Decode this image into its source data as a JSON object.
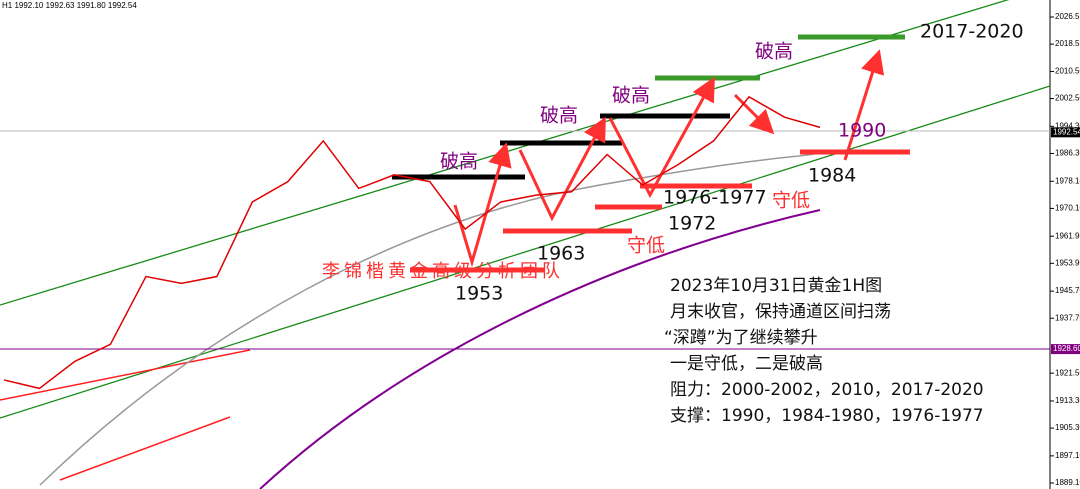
{
  "chart_data": {
    "type": "line",
    "header": "H1  1992.10 1992.63 1991.80 1992.54",
    "categories": [
      null,
      null,
      null,
      null,
      null,
      null,
      null,
      null,
      null,
      null,
      null,
      null,
      null,
      null,
      null,
      null,
      null,
      null,
      null,
      null,
      null,
      null,
      null,
      null
    ],
    "series": [
      {
        "color": "#e00000",
        "values": [
          1919.5,
          1917,
          1925,
          1930,
          1950,
          1948,
          1950,
          1972,
          1978,
          1990,
          1976,
          1980,
          1978,
          1964,
          1972,
          1974,
          1975,
          1986,
          1977,
          1983,
          1990,
          2003,
          1997,
          1994
        ]
      }
    ],
    "ylim": [
      1887.33,
      2031.57
    ],
    "yticks": [
      2026.56,
      {
        "value": 2018.55,
        "label": "2018.55"
      },
      {
        "value": 2010.5,
        "label": "2010.50"
      },
      {
        "value": 2002.5,
        "label": "2002.50"
      },
      {
        "value": 1994.3,
        "label": "1994.30"
      },
      {
        "value": 1986.3,
        "label": "1986.30"
      },
      {
        "value": 1978.1,
        "label": "1978.10"
      },
      {
        "value": 1970.1,
        "label": "1970.10"
      },
      {
        "value": 1961.9,
        "label": "1961.90"
      },
      {
        "value": 1953.9,
        "label": "1953.90"
      },
      {
        "value": 1945.7,
        "label": "1945.70"
      },
      {
        "value": 1937.7,
        "label": "1937.70"
      },
      {
        "value": 1921.5,
        "label": "1921.50"
      },
      {
        "value": 1913.3,
        "label": "1913.30"
      },
      {
        "value": 1905.3,
        "label": "1905.30"
      },
      {
        "value": 1897.1,
        "label": "1897.10"
      },
      {
        "value": 1889.1,
        "label": "1889.10"
      }
    ],
    "price_labels": [
      {
        "value": 1992.54,
        "label": "1992.54",
        "color": "#000000"
      },
      {
        "value": 1928.6,
        "label": "1928.60",
        "color": "#800080"
      }
    ],
    "annotations": [
      "破高",
      "破高",
      "破高",
      "破高",
      "2017-2020",
      "1990",
      "1984",
      "1976-1977",
      "守低",
      "1972",
      "守低",
      "1963",
      "1953",
      "李锦楷黄金高级分析团队"
    ],
    "notes": [
      "2023年10月31日黄金1H图",
      "月末收官，保持通道区间扫荡",
      "“深蹲”为了继续攀升",
      "一是守低，二是破高",
      "阻力：2000-2002，2010，2017-2020",
      "支撑：1990，1984-1980，1976-1977"
    ]
  }
}
